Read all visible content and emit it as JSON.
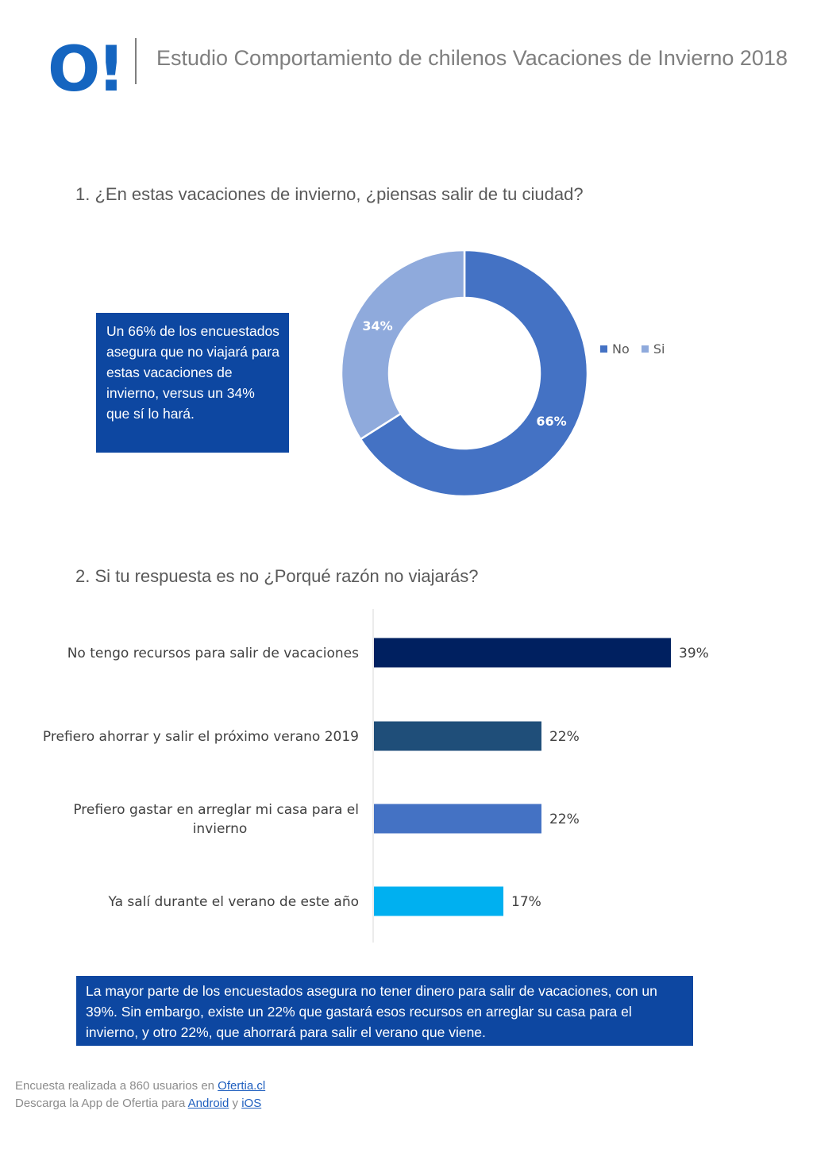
{
  "header": {
    "logo_text": "O!",
    "title": "Estudio Comportamiento de chilenos Vacaciones de Invierno 2018"
  },
  "questions": {
    "q1": "1. ¿En estas vacaciones de invierno, ¿piensas salir de tu ciudad?",
    "q2": "2. Si tu respuesta es no ¿Porqué razón no viajarás?"
  },
  "notes": {
    "note1": "Un 66% de los encuestados asegura que no viajará para estas vacaciones de invierno, versus un 34% que sí lo hará.",
    "note2": "La mayor parte de los encuestados asegura no tener dinero para salir de vacaciones, con un 39%. Sin embargo, existe un 22% que gastará esos recursos en arreglar su casa para el invierno, y otro 22%, que ahorrará para salir el verano que viene."
  },
  "chart_data": [
    {
      "type": "pie",
      "donut": true,
      "title": "",
      "legend": "right",
      "slices": [
        {
          "name": "No",
          "value": 66,
          "label": "66%",
          "color": "#4472c4"
        },
        {
          "name": "Si",
          "value": 34,
          "label": "34%",
          "color": "#8faadc"
        }
      ]
    },
    {
      "type": "bar",
      "orientation": "horizontal",
      "title": "",
      "categories": [
        "No tengo recursos para salir de vacaciones",
        "Prefiero ahorrar y salir el próximo verano 2019",
        "Prefiero gastar en arreglar mi casa para el invierno",
        "Ya salí durante el verano de este año"
      ],
      "category_lines": [
        [
          "No tengo recursos para salir de vacaciones"
        ],
        [
          "Prefiero ahorrar y salir el próximo verano 2019"
        ],
        [
          "Prefiero gastar en arreglar mi casa para el",
          "invierno"
        ],
        [
          "Ya salí durante el verano de este año"
        ]
      ],
      "values": [
        39,
        22,
        22,
        17
      ],
      "value_labels": [
        "39%",
        "22%",
        "22%",
        "17%"
      ],
      "colors": [
        "#002060",
        "#1f4e79",
        "#4472c4",
        "#00b0f0"
      ],
      "xlim": [
        0,
        39
      ],
      "grid": false
    }
  ],
  "footer": {
    "line1_text": "Encuesta realizada a 860 usuarios en ",
    "line1_link": "Ofertia.cl",
    "line2_text": "Descarga la App de Ofertia para ",
    "line2_link1": "Android",
    "line2_sep": " y ",
    "line2_link2": "iOS"
  }
}
